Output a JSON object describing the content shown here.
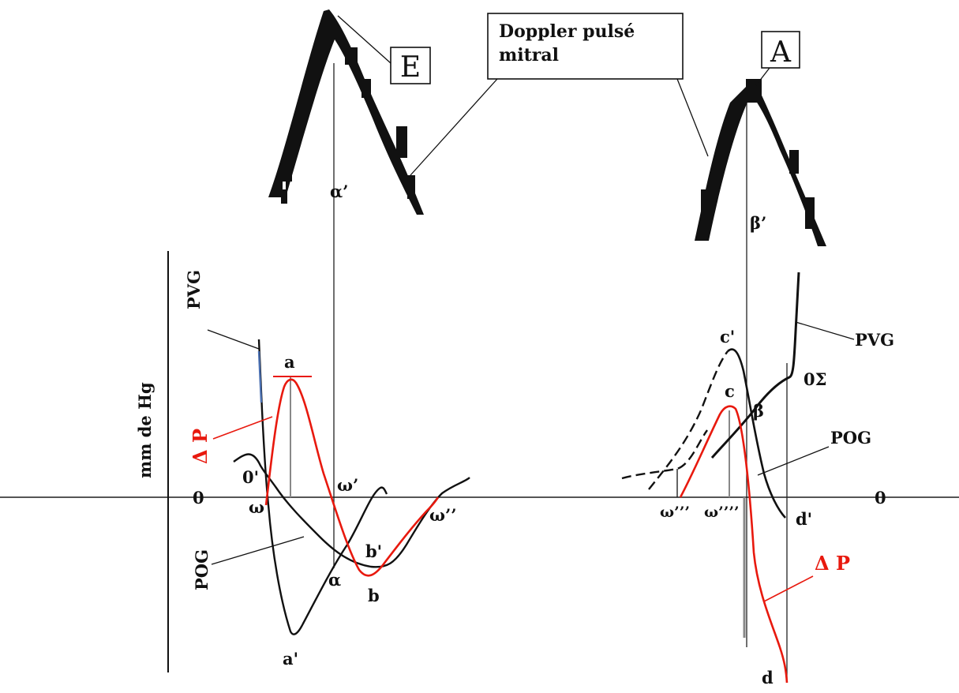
{
  "diagram": {
    "box_doppler": {
      "line1": "Doppler pulsé",
      "line2": "mitral"
    },
    "box_E": "E",
    "box_A": "A",
    "y_axis_label": "mm de Hg",
    "labels": {
      "alpha_prime": "α’",
      "beta_prime": "β’",
      "pvg_left": "PVG",
      "pvg_right": "PVG",
      "pog_left": "POG",
      "pog_right": "POG",
      "delta_p_left": "Δ P",
      "delta_p_right": "Δ P",
      "zero_left": "0",
      "zero_right": "0",
      "zero_prime": "0'",
      "zero_sigma": "0Σ",
      "a": "a",
      "a_prime": "a'",
      "b": "b",
      "b_prime": "b'",
      "c": "c",
      "c_prime": "c'",
      "d": "d",
      "d_prime": "d'",
      "alpha": "α",
      "beta": "β",
      "omega": "ω",
      "omega_1": "ω’",
      "omega_2": "ω’’",
      "omega_3": "ω’’’",
      "omega_4": "ω’’’’"
    },
    "colors": {
      "ink": "#111111",
      "red": "#e8190e",
      "blue_hint": "#4a6fb0",
      "gray": "#888888"
    }
  }
}
